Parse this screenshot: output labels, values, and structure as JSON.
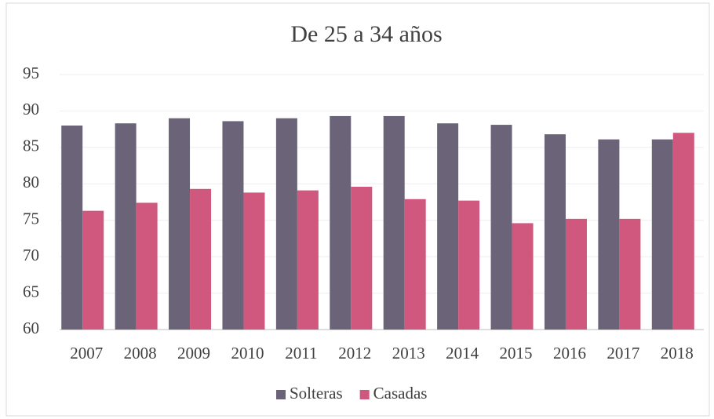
{
  "chart_data": {
    "type": "bar",
    "title": "De 25 a 34 años",
    "categories": [
      "2007",
      "2008",
      "2009",
      "2010",
      "2011",
      "2012",
      "2013",
      "2014",
      "2015",
      "2016",
      "2017",
      "2018"
    ],
    "series": [
      {
        "name": "Solteras",
        "color": "#6b6479",
        "values": [
          88.0,
          88.3,
          89.0,
          88.6,
          89.0,
          89.3,
          89.3,
          88.3,
          88.1,
          86.8,
          86.1,
          86.1
        ]
      },
      {
        "name": "Casadas",
        "color": "#d0587e",
        "values": [
          76.3,
          77.4,
          79.3,
          78.8,
          79.1,
          79.6,
          77.9,
          77.7,
          74.6,
          75.2,
          75.2,
          87.0
        ]
      }
    ],
    "ylim": [
      60,
      95
    ],
    "yticks": [
      60,
      65,
      70,
      75,
      80,
      85,
      90,
      95
    ],
    "grid": true,
    "legend": "bottom"
  }
}
